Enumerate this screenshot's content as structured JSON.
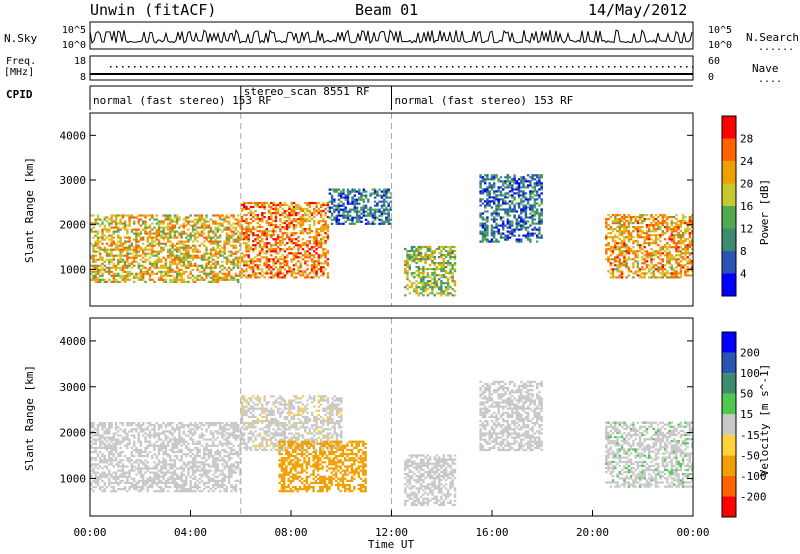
{
  "header": {
    "radar": "Unwin (fitACF)",
    "beam": "Beam 01",
    "date": "14/May/2012"
  },
  "noise_panel": {
    "left_label": "N.Sky",
    "right_label": "N.Search",
    "left_ticks": [
      "10^5",
      "10^0"
    ],
    "right_ticks": [
      "10^5",
      "10^0"
    ],
    "legend_sample": "......"
  },
  "freq_panel": {
    "left_label_line1": "Freq.",
    "left_label_line2": "[MHz]",
    "right_label": "Nave",
    "left_ticks": [
      "18",
      "8"
    ],
    "right_ticks": [
      "60",
      "0"
    ],
    "legend_sample": "...."
  },
  "cpid": {
    "label": "CPID",
    "segments": [
      {
        "text": "normal (fast stereo) 153 RF",
        "start": 0,
        "end": 6
      },
      {
        "text": "stereo_scan 8551 RF",
        "start": 6,
        "end": 12
      },
      {
        "text": "normal (fast stereo) 153 RF",
        "start": 12,
        "end": 24
      }
    ]
  },
  "colors": {
    "power": [
      "#0000ff",
      "#2a55b4",
      "#3c8c6e",
      "#50aa50",
      "#c8c832",
      "#f0a000",
      "#ff6400",
      "#ff0000"
    ],
    "velocity": [
      "#ff0000",
      "#ff6400",
      "#f0a000",
      "#ffd23c",
      "#c8c8c8",
      "#50c850",
      "#3c8c6e",
      "#2a55b4",
      "#0000ff"
    ]
  },
  "chart_data": [
    {
      "type": "heatmap",
      "name": "power",
      "ylabel": "Slant Range [km]",
      "ylim": [
        180,
        4500
      ],
      "yticks": [
        1000,
        2000,
        3000,
        4000
      ],
      "xlim": [
        0,
        24
      ],
      "vertical_markers_hours": [
        6,
        12
      ],
      "colorbar": {
        "label": "Power [dB]",
        "tick_labels": [
          "28",
          "24",
          "20",
          "16",
          "12",
          "8",
          "4"
        ],
        "range": [
          0,
          32
        ]
      },
      "echo_regions": [
        {
          "t0": 0.0,
          "t1": 6.0,
          "r_lo": 700,
          "r_hi": 2200,
          "value": 20
        },
        {
          "t0": 6.0,
          "t1": 9.5,
          "r_lo": 800,
          "r_hi": 2500,
          "value": 24
        },
        {
          "t0": 9.5,
          "t1": 12.0,
          "r_lo": 2000,
          "r_hi": 2800,
          "value": 8
        },
        {
          "t0": 12.5,
          "t1": 14.5,
          "r_lo": 400,
          "r_hi": 1500,
          "value": 16
        },
        {
          "t0": 15.5,
          "t1": 18.0,
          "r_lo": 1600,
          "r_hi": 3100,
          "value": 8
        },
        {
          "t0": 20.5,
          "t1": 24.0,
          "r_lo": 800,
          "r_hi": 2200,
          "value": 22
        }
      ]
    },
    {
      "type": "heatmap",
      "name": "velocity",
      "ylabel": "Slant Range [km]",
      "ylim": [
        180,
        4500
      ],
      "yticks": [
        1000,
        2000,
        3000,
        4000
      ],
      "xlim": [
        0,
        24
      ],
      "xticks": [
        "00:00",
        "04:00",
        "08:00",
        "12:00",
        "16:00",
        "20:00",
        "00:00"
      ],
      "xlabel": "Time UT",
      "vertical_markers_hours": [
        6,
        12
      ],
      "colorbar": {
        "label": "Velocity [m s^-1]",
        "tick_labels": [
          "200",
          "100",
          "50",
          "15",
          "-15",
          "-50",
          "-100",
          "-200"
        ],
        "range": [
          -250,
          250
        ]
      },
      "echo_regions": [
        {
          "t0": 0.0,
          "t1": 6.0,
          "r_lo": 700,
          "r_hi": 2200,
          "value": 0
        },
        {
          "t0": 6.0,
          "t1": 10.0,
          "r_lo": 1600,
          "r_hi": 2800,
          "value": -10
        },
        {
          "t0": 7.5,
          "t1": 11.0,
          "r_lo": 700,
          "r_hi": 1800,
          "value": -60
        },
        {
          "t0": 12.5,
          "t1": 14.5,
          "r_lo": 400,
          "r_hi": 1500,
          "value": -5
        },
        {
          "t0": 15.5,
          "t1": 18.0,
          "r_lo": 1600,
          "r_hi": 3100,
          "value": 0
        },
        {
          "t0": 20.5,
          "t1": 24.0,
          "r_lo": 800,
          "r_hi": 2200,
          "value": 10
        }
      ]
    }
  ]
}
